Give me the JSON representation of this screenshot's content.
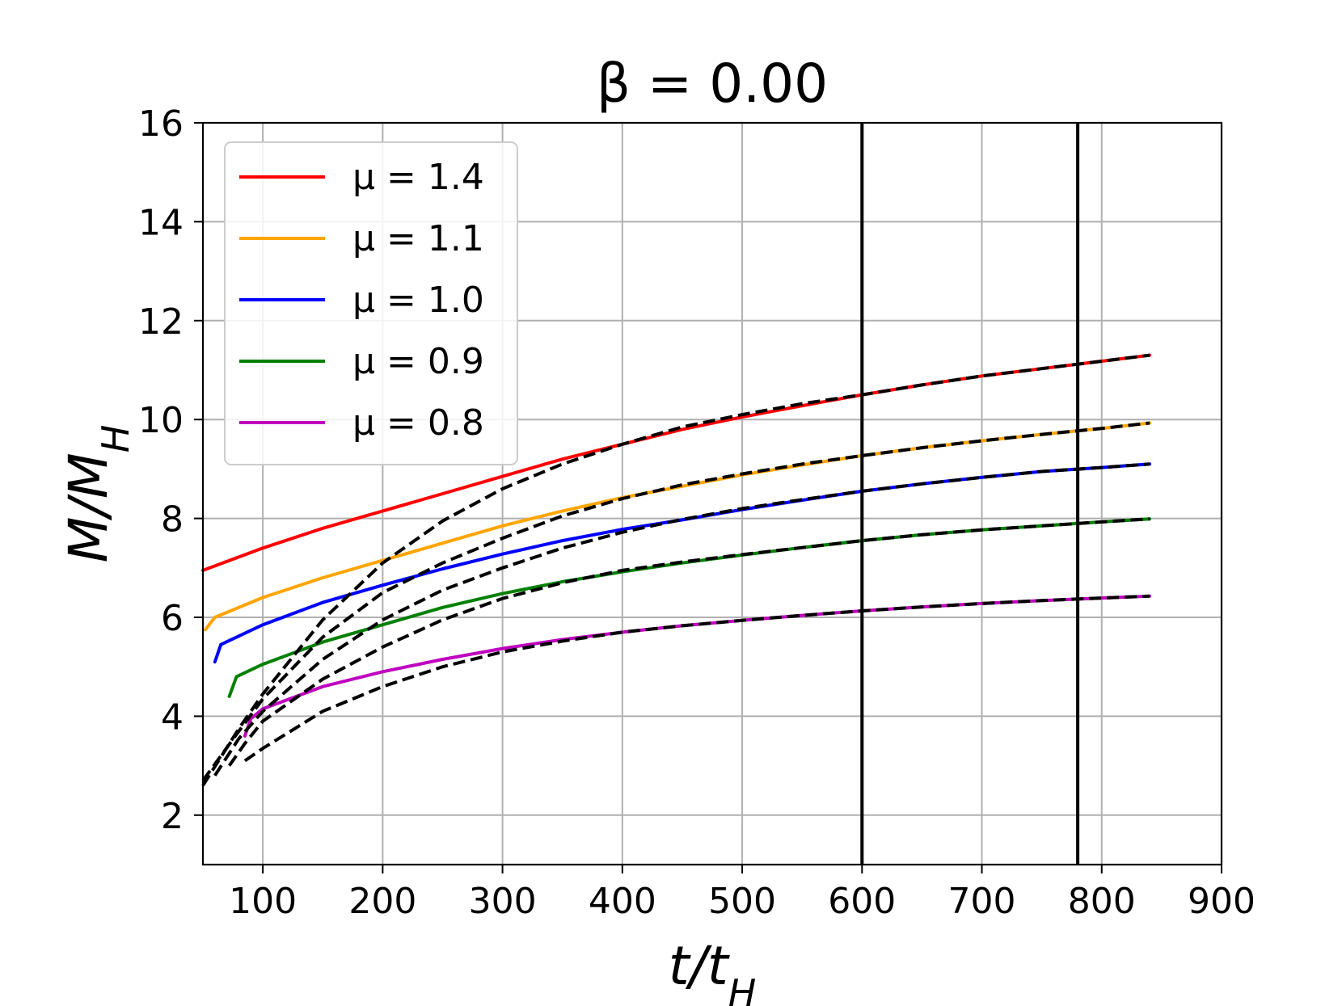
{
  "chart_data": {
    "type": "line",
    "title": "β = 0.00",
    "xlabel": "t/t_H",
    "ylabel": "M/M_H",
    "xlim": [
      50,
      900
    ],
    "ylim": [
      1,
      16
    ],
    "xticks": [
      100,
      200,
      300,
      400,
      500,
      600,
      700,
      800,
      900
    ],
    "yticks": [
      2,
      4,
      6,
      8,
      10,
      12,
      14,
      16
    ],
    "grid": true,
    "legend_position": "upper-left",
    "vertical_lines": [
      600,
      780
    ],
    "series": [
      {
        "name": "μ = 1.4",
        "color": "#ff0000",
        "x": [
          50,
          100,
          150,
          200,
          250,
          300,
          350,
          400,
          450,
          500,
          550,
          600,
          650,
          700,
          750,
          800,
          840
        ],
        "y": [
          6.95,
          7.4,
          7.8,
          8.15,
          8.5,
          8.85,
          9.2,
          9.5,
          9.8,
          10.05,
          10.28,
          10.5,
          10.7,
          10.88,
          11.03,
          11.18,
          11.3
        ]
      },
      {
        "name": "μ = 1.1",
        "color": "#ffa500",
        "x": [
          52,
          60,
          100,
          150,
          200,
          250,
          300,
          350,
          400,
          450,
          500,
          550,
          600,
          650,
          700,
          750,
          800,
          840
        ],
        "y": [
          5.75,
          6.0,
          6.4,
          6.8,
          7.15,
          7.5,
          7.85,
          8.15,
          8.42,
          8.65,
          8.88,
          9.08,
          9.27,
          9.43,
          9.57,
          9.7,
          9.82,
          9.93
        ]
      },
      {
        "name": "μ = 1.0",
        "color": "#0000ff",
        "x": [
          60,
          65,
          100,
          150,
          200,
          250,
          300,
          350,
          400,
          450,
          500,
          550,
          600,
          650,
          700,
          750,
          800,
          840
        ],
        "y": [
          5.1,
          5.45,
          5.85,
          6.3,
          6.65,
          6.98,
          7.28,
          7.55,
          7.78,
          7.97,
          8.18,
          8.37,
          8.55,
          8.7,
          8.83,
          8.95,
          9.03,
          9.1
        ]
      },
      {
        "name": "μ = 0.9",
        "color": "#008000",
        "x": [
          72,
          78,
          100,
          150,
          200,
          250,
          300,
          350,
          400,
          450,
          500,
          550,
          600,
          650,
          700,
          750,
          800,
          840
        ],
        "y": [
          4.4,
          4.8,
          5.05,
          5.5,
          5.85,
          6.2,
          6.48,
          6.72,
          6.92,
          7.1,
          7.26,
          7.41,
          7.55,
          7.67,
          7.77,
          7.85,
          7.93,
          7.99
        ]
      },
      {
        "name": "μ = 0.8",
        "color": "#bf00bf",
        "x": [
          85,
          90,
          100,
          150,
          200,
          250,
          300,
          350,
          400,
          450,
          500,
          550,
          600,
          650,
          700,
          750,
          800,
          840
        ],
        "y": [
          3.6,
          3.95,
          4.15,
          4.6,
          4.9,
          5.15,
          5.37,
          5.55,
          5.7,
          5.83,
          5.94,
          6.04,
          6.13,
          6.21,
          6.28,
          6.34,
          6.39,
          6.43
        ]
      }
    ],
    "fit_series": [
      {
        "style": "dashed",
        "color": "#000000",
        "x": [
          50,
          80,
          100,
          150,
          200,
          250,
          300,
          350,
          400,
          450,
          500,
          550,
          600,
          650,
          700,
          750,
          800,
          840
        ],
        "y": [
          2.6,
          3.75,
          4.45,
          5.95,
          7.1,
          7.95,
          8.6,
          9.1,
          9.5,
          9.85,
          10.1,
          10.32,
          10.5,
          10.7,
          10.88,
          11.03,
          11.18,
          11.3
        ]
      },
      {
        "style": "dashed",
        "color": "#000000",
        "x": [
          50,
          80,
          100,
          150,
          200,
          250,
          300,
          350,
          400,
          450,
          500,
          550,
          600,
          650,
          700,
          750,
          800,
          840
        ],
        "y": [
          2.7,
          3.7,
          4.35,
          5.6,
          6.5,
          7.1,
          7.6,
          8.05,
          8.4,
          8.68,
          8.9,
          9.1,
          9.27,
          9.43,
          9.57,
          9.7,
          9.82,
          9.93
        ]
      },
      {
        "style": "dashed",
        "color": "#000000",
        "x": [
          60,
          80,
          100,
          150,
          200,
          250,
          300,
          350,
          400,
          450,
          500,
          550,
          600,
          650,
          700,
          750,
          800,
          840
        ],
        "y": [
          2.8,
          3.55,
          4.1,
          5.15,
          5.95,
          6.55,
          7.0,
          7.4,
          7.72,
          7.98,
          8.2,
          8.38,
          8.55,
          8.7,
          8.83,
          8.95,
          9.03,
          9.1
        ]
      },
      {
        "style": "dashed",
        "color": "#000000",
        "x": [
          72,
          85,
          100,
          150,
          200,
          250,
          300,
          350,
          400,
          450,
          500,
          550,
          600,
          650,
          700,
          750,
          800,
          840
        ],
        "y": [
          3.0,
          3.45,
          3.9,
          4.75,
          5.4,
          5.95,
          6.38,
          6.7,
          6.95,
          7.12,
          7.27,
          7.41,
          7.55,
          7.67,
          7.77,
          7.85,
          7.93,
          7.99
        ]
      },
      {
        "style": "dashed",
        "color": "#000000",
        "x": [
          85,
          100,
          150,
          200,
          250,
          300,
          350,
          400,
          450,
          500,
          550,
          600,
          650,
          700,
          750,
          800,
          840
        ],
        "y": [
          3.1,
          3.35,
          4.1,
          4.6,
          5.0,
          5.3,
          5.52,
          5.7,
          5.83,
          5.94,
          6.04,
          6.13,
          6.21,
          6.28,
          6.34,
          6.39,
          6.43
        ]
      }
    ]
  }
}
